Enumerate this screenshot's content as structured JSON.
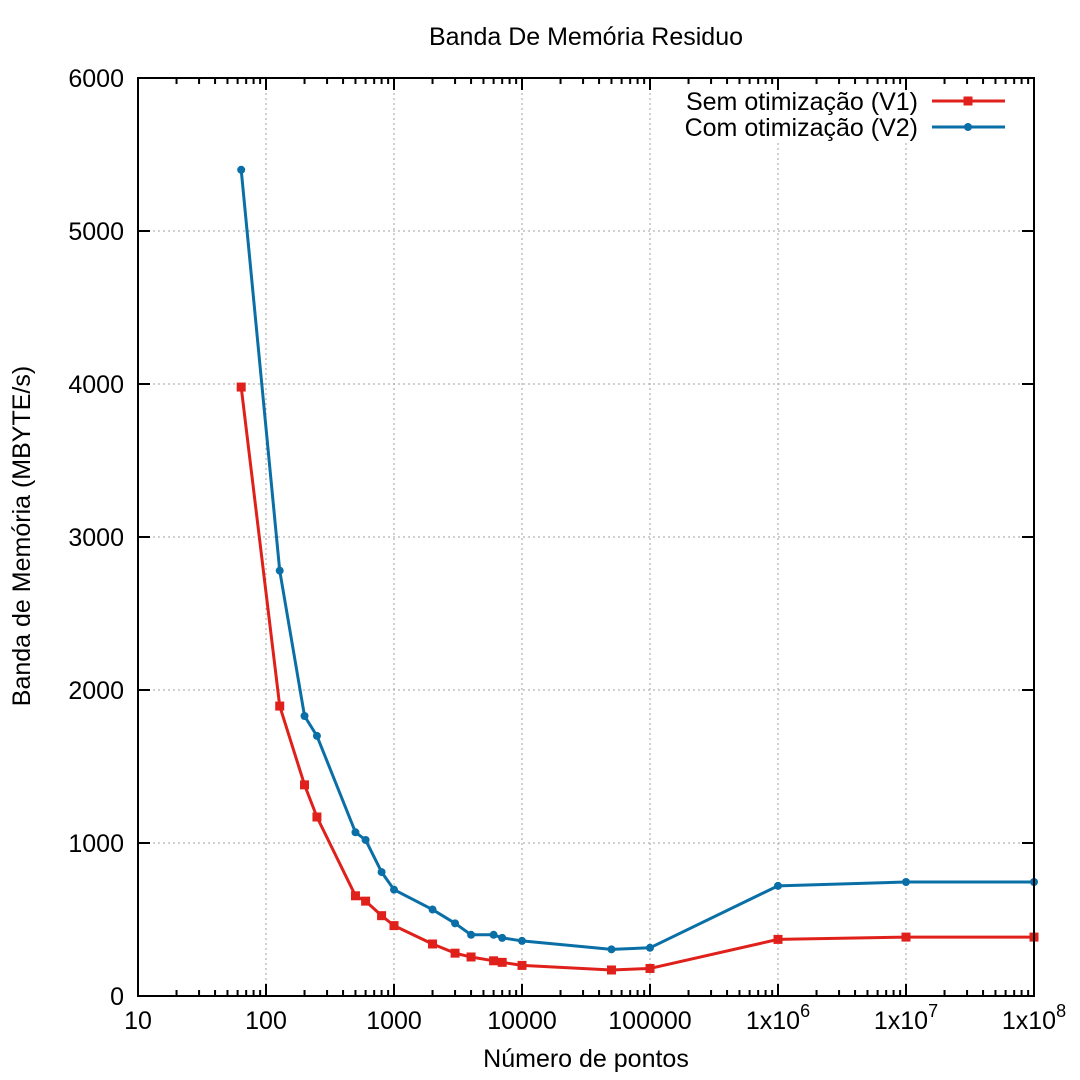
{
  "chart_data": {
    "type": "line",
    "title": "Banda De Memória Residuo",
    "xlabel": "Número de pontos",
    "ylabel": "Banda de Memória (MBYTE/s)",
    "x_scale": "log",
    "xlim": [
      10,
      100000000
    ],
    "ylim": [
      0,
      6000
    ],
    "x_ticks": [
      {
        "value": 10,
        "label": "10",
        "exp": ""
      },
      {
        "value": 100,
        "label": "100",
        "exp": ""
      },
      {
        "value": 1000,
        "label": "1000",
        "exp": ""
      },
      {
        "value": 10000,
        "label": "10000",
        "exp": ""
      },
      {
        "value": 100000,
        "label": "100000",
        "exp": ""
      },
      {
        "value": 1000000,
        "label": "1x10",
        "exp": "6"
      },
      {
        "value": 10000000,
        "label": "1x10",
        "exp": "7"
      },
      {
        "value": 100000000,
        "label": "1x10",
        "exp": "8"
      }
    ],
    "y_ticks": [
      {
        "value": 0,
        "label": "0"
      },
      {
        "value": 1000,
        "label": "1000"
      },
      {
        "value": 2000,
        "label": "2000"
      },
      {
        "value": 3000,
        "label": "3000"
      },
      {
        "value": 4000,
        "label": "4000"
      },
      {
        "value": 5000,
        "label": "5000"
      },
      {
        "value": 6000,
        "label": "6000"
      }
    ],
    "grid": true,
    "legend_position": "top-right",
    "series": [
      {
        "name": "Sem otimização (V1)",
        "color": "#e0201a",
        "marker": "square",
        "x": [
          64,
          128,
          200,
          250,
          500,
          600,
          800,
          1000,
          2000,
          3000,
          4000,
          6000,
          7000,
          10000,
          50000,
          100000,
          1000000,
          10000000,
          100000000
        ],
        "y": [
          3980,
          1895,
          1380,
          1170,
          655,
          620,
          525,
          460,
          340,
          280,
          255,
          230,
          220,
          200,
          170,
          180,
          370,
          385,
          385
        ]
      },
      {
        "name": "Com otimização (V2)",
        "color": "#0a6fa6",
        "marker": "circle",
        "x": [
          64,
          128,
          200,
          250,
          500,
          600,
          800,
          1000,
          2000,
          3000,
          4000,
          6000,
          7000,
          10000,
          50000,
          100000,
          1000000,
          10000000,
          100000000
        ],
        "y": [
          5400,
          2780,
          1830,
          1700,
          1070,
          1020,
          810,
          695,
          565,
          475,
          400,
          400,
          380,
          360,
          305,
          315,
          720,
          745,
          745
        ]
      }
    ]
  }
}
